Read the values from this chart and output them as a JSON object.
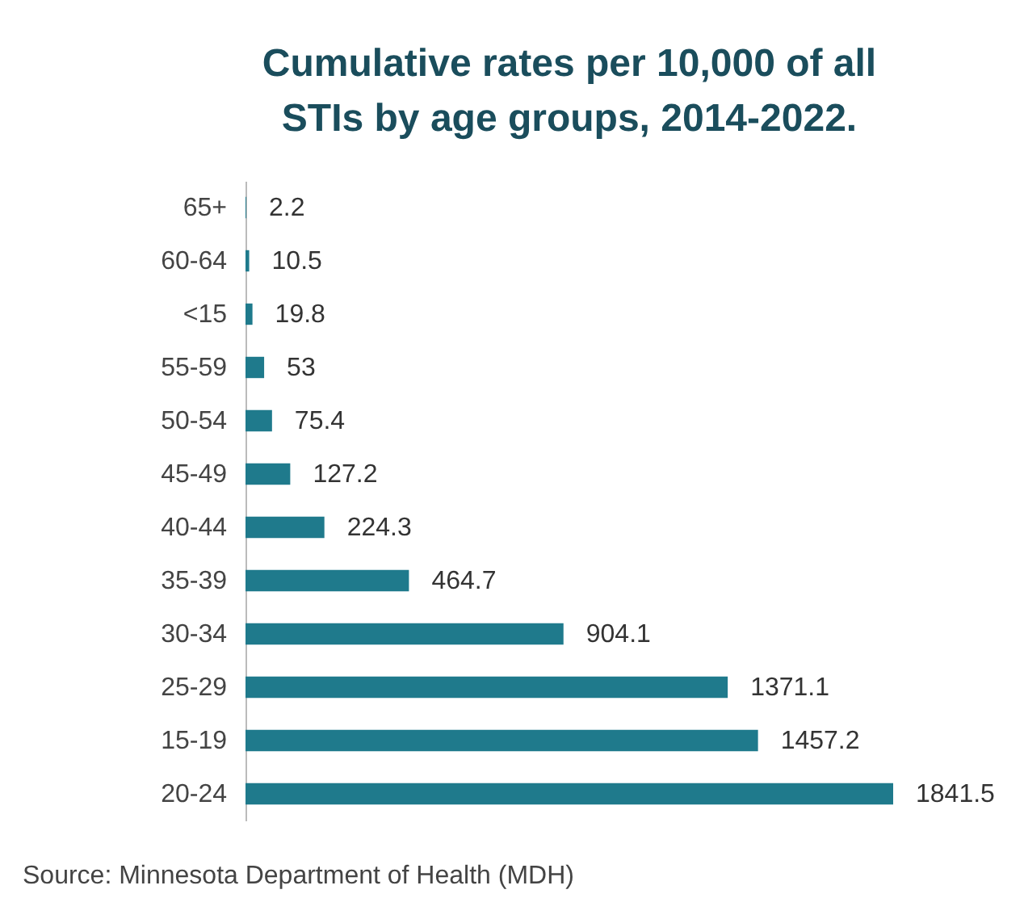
{
  "chart_data": {
    "type": "bar",
    "orientation": "horizontal",
    "title": "Cumulative rates per 10,000 of all STIs by age groups, 2014-2022.",
    "categories": [
      "65+",
      "60-64",
      "<15",
      "55-59",
      "50-54",
      "45-49",
      "40-44",
      "35-39",
      "30-34",
      "25-29",
      "15-19",
      "20-24"
    ],
    "values": [
      2.2,
      10.5,
      19.8,
      53,
      75.4,
      127.2,
      224.3,
      464.7,
      904.1,
      1371.1,
      1457.2,
      1841.5
    ],
    "color": "#1f7a8c",
    "data_labels": true,
    "annotations": [
      "Source: Minnesota Department of Health (MDH)"
    ]
  }
}
